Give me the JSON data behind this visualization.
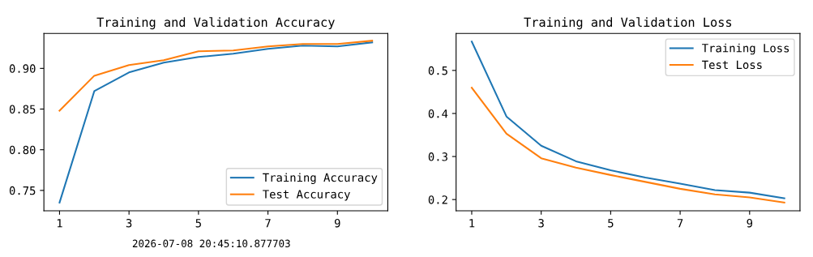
{
  "chart_data": [
    {
      "type": "line",
      "title": "Training and Validation Accuracy",
      "x": [
        1,
        2,
        3,
        4,
        5,
        6,
        7,
        8,
        9,
        10
      ],
      "series": [
        {
          "name": "Training Accuracy",
          "color": "#1f77b4",
          "values": [
            0.735,
            0.872,
            0.895,
            0.907,
            0.914,
            0.918,
            0.924,
            0.928,
            0.927,
            0.932
          ]
        },
        {
          "name": "Test Accuracy",
          "color": "#ff7f0e",
          "values": [
            0.848,
            0.891,
            0.904,
            0.91,
            0.921,
            0.922,
            0.927,
            0.93,
            0.93,
            0.934
          ]
        }
      ],
      "xlim": [
        0.55,
        10.45
      ],
      "xticks": [
        1,
        3,
        5,
        7,
        9
      ],
      "ylim": [
        0.725,
        0.943
      ],
      "yticks": [
        {
          "value": 0.75,
          "label": "0.75"
        },
        {
          "value": 0.8,
          "label": "0.80"
        },
        {
          "value": 0.85,
          "label": "0.85"
        },
        {
          "value": 0.9,
          "label": "0.90"
        }
      ],
      "legend": "bottom right",
      "grid": false,
      "marker": "none",
      "line_style": "solid",
      "annotations": [
        "2026-07-08 20:45:10.877703"
      ]
    },
    {
      "type": "line",
      "title": "Training and Validation Loss",
      "x": [
        1,
        2,
        3,
        4,
        5,
        6,
        7,
        8,
        9,
        10
      ],
      "series": [
        {
          "name": "Training Loss",
          "color": "#1f77b4",
          "values": [
            0.567,
            0.393,
            0.325,
            0.289,
            0.268,
            0.251,
            0.237,
            0.222,
            0.216,
            0.203
          ]
        },
        {
          "name": "Test Loss",
          "color": "#ff7f0e",
          "values": [
            0.46,
            0.353,
            0.296,
            0.274,
            0.257,
            0.241,
            0.225,
            0.212,
            0.205,
            0.193
          ]
        }
      ],
      "xlim": [
        0.55,
        10.45
      ],
      "xticks": [
        1,
        3,
        5,
        7,
        9
      ],
      "ylim": [
        0.174,
        0.586
      ],
      "yticks": [
        0.2,
        0.3,
        0.4,
        0.5
      ],
      "legend": "top right",
      "grid": false,
      "marker": "none",
      "line_style": "solid"
    }
  ]
}
